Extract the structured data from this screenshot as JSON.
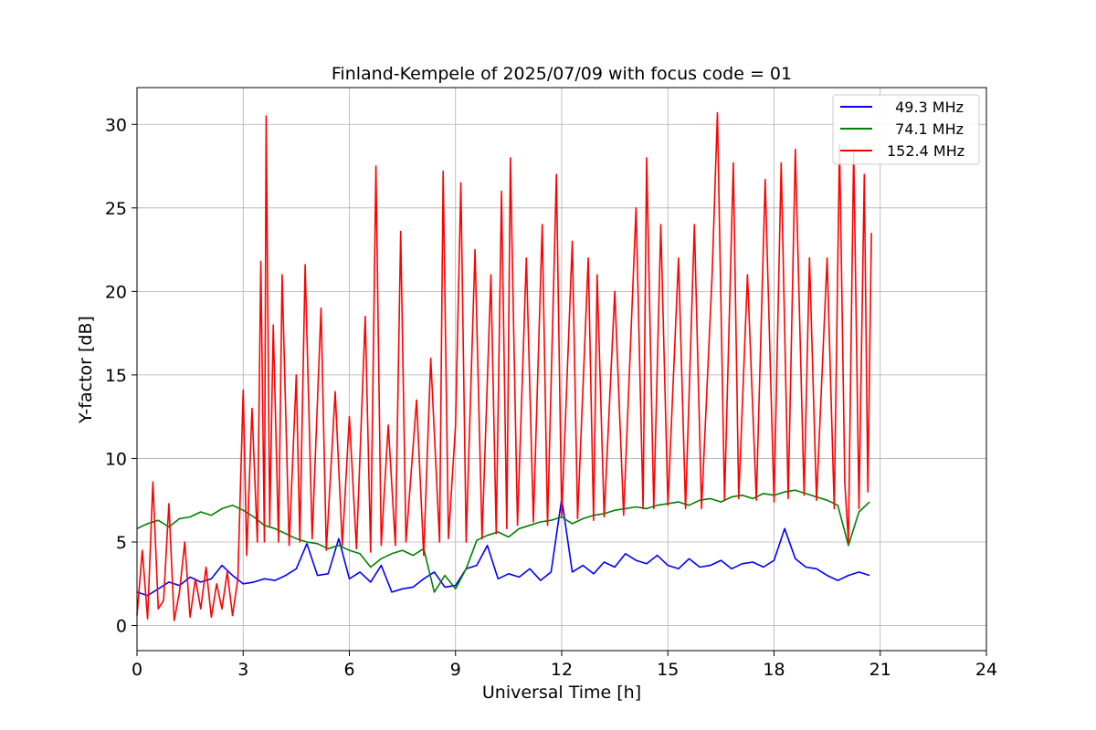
{
  "chart_data": {
    "type": "line",
    "title": "Finland-Kempele of 2025/07/09 with focus code = 01",
    "xlabel": "Universal Time [h]",
    "ylabel": "Y-factor [dB]",
    "xlim": [
      0,
      24
    ],
    "ylim": [
      -1.5,
      32.2
    ],
    "xticks": [
      0,
      3,
      6,
      9,
      12,
      15,
      18,
      21,
      24
    ],
    "yticks": [
      0,
      5,
      10,
      15,
      20,
      25,
      30
    ],
    "grid": true,
    "legend_position": "top-right",
    "series": [
      {
        "name": " 49.3 MHz",
        "color": "#0000ff",
        "points": [
          [
            0.0,
            2.0
          ],
          [
            0.3,
            1.8
          ],
          [
            0.6,
            2.2
          ],
          [
            0.9,
            2.6
          ],
          [
            1.2,
            2.4
          ],
          [
            1.5,
            2.9
          ],
          [
            1.8,
            2.6
          ],
          [
            2.1,
            2.8
          ],
          [
            2.4,
            3.6
          ],
          [
            2.7,
            3.0
          ],
          [
            3.0,
            2.5
          ],
          [
            3.3,
            2.6
          ],
          [
            3.6,
            2.8
          ],
          [
            3.9,
            2.7
          ],
          [
            4.2,
            3.0
          ],
          [
            4.5,
            3.4
          ],
          [
            4.8,
            4.9
          ],
          [
            5.1,
            3.0
          ],
          [
            5.4,
            3.1
          ],
          [
            5.7,
            5.2
          ],
          [
            6.0,
            2.8
          ],
          [
            6.3,
            3.2
          ],
          [
            6.6,
            2.6
          ],
          [
            6.9,
            3.6
          ],
          [
            7.2,
            2.0
          ],
          [
            7.5,
            2.2
          ],
          [
            7.8,
            2.3
          ],
          [
            8.1,
            2.8
          ],
          [
            8.4,
            3.2
          ],
          [
            8.7,
            2.3
          ],
          [
            9.0,
            2.4
          ],
          [
            9.3,
            3.4
          ],
          [
            9.6,
            3.6
          ],
          [
            9.9,
            4.8
          ],
          [
            10.2,
            2.8
          ],
          [
            10.5,
            3.1
          ],
          [
            10.8,
            2.9
          ],
          [
            11.1,
            3.4
          ],
          [
            11.4,
            2.7
          ],
          [
            11.7,
            3.2
          ],
          [
            12.0,
            7.6
          ],
          [
            12.3,
            3.2
          ],
          [
            12.6,
            3.6
          ],
          [
            12.9,
            3.1
          ],
          [
            13.2,
            3.8
          ],
          [
            13.5,
            3.5
          ],
          [
            13.8,
            4.3
          ],
          [
            14.1,
            3.9
          ],
          [
            14.4,
            3.7
          ],
          [
            14.7,
            4.2
          ],
          [
            15.0,
            3.6
          ],
          [
            15.3,
            3.4
          ],
          [
            15.6,
            4.0
          ],
          [
            15.9,
            3.5
          ],
          [
            16.2,
            3.6
          ],
          [
            16.5,
            3.9
          ],
          [
            16.8,
            3.4
          ],
          [
            17.1,
            3.7
          ],
          [
            17.4,
            3.8
          ],
          [
            17.7,
            3.5
          ],
          [
            18.0,
            3.9
          ],
          [
            18.3,
            5.8
          ],
          [
            18.6,
            4.0
          ],
          [
            18.9,
            3.5
          ],
          [
            19.2,
            3.4
          ],
          [
            19.5,
            3.0
          ],
          [
            19.8,
            2.7
          ],
          [
            20.1,
            3.0
          ],
          [
            20.4,
            3.2
          ],
          [
            20.7,
            3.0
          ]
        ]
      },
      {
        "name": " 74.1 MHz",
        "color": "#008000",
        "points": [
          [
            0.0,
            5.8
          ],
          [
            0.3,
            6.1
          ],
          [
            0.6,
            6.3
          ],
          [
            0.9,
            5.9
          ],
          [
            1.2,
            6.4
          ],
          [
            1.5,
            6.5
          ],
          [
            1.8,
            6.8
          ],
          [
            2.1,
            6.6
          ],
          [
            2.4,
            7.0
          ],
          [
            2.7,
            7.2
          ],
          [
            3.0,
            6.9
          ],
          [
            3.3,
            6.5
          ],
          [
            3.6,
            6.0
          ],
          [
            3.9,
            5.8
          ],
          [
            4.2,
            5.5
          ],
          [
            4.5,
            5.2
          ],
          [
            4.8,
            5.0
          ],
          [
            5.1,
            4.9
          ],
          [
            5.4,
            4.6
          ],
          [
            5.7,
            4.8
          ],
          [
            6.0,
            4.5
          ],
          [
            6.3,
            4.3
          ],
          [
            6.6,
            3.5
          ],
          [
            6.9,
            4.0
          ],
          [
            7.2,
            4.3
          ],
          [
            7.5,
            4.5
          ],
          [
            7.8,
            4.2
          ],
          [
            8.1,
            4.6
          ],
          [
            8.4,
            2.0
          ],
          [
            8.7,
            3.0
          ],
          [
            9.0,
            2.2
          ],
          [
            9.3,
            3.4
          ],
          [
            9.6,
            5.1
          ],
          [
            9.9,
            5.4
          ],
          [
            10.2,
            5.6
          ],
          [
            10.5,
            5.3
          ],
          [
            10.8,
            5.8
          ],
          [
            11.1,
            6.0
          ],
          [
            11.4,
            6.2
          ],
          [
            11.7,
            6.3
          ],
          [
            12.0,
            6.5
          ],
          [
            12.3,
            6.1
          ],
          [
            12.6,
            6.4
          ],
          [
            12.9,
            6.6
          ],
          [
            13.2,
            6.7
          ],
          [
            13.5,
            6.9
          ],
          [
            13.8,
            7.0
          ],
          [
            14.1,
            7.1
          ],
          [
            14.4,
            7.0
          ],
          [
            14.7,
            7.2
          ],
          [
            15.0,
            7.3
          ],
          [
            15.3,
            7.4
          ],
          [
            15.6,
            7.2
          ],
          [
            15.9,
            7.5
          ],
          [
            16.2,
            7.6
          ],
          [
            16.5,
            7.4
          ],
          [
            16.8,
            7.7
          ],
          [
            17.1,
            7.8
          ],
          [
            17.4,
            7.6
          ],
          [
            17.7,
            7.9
          ],
          [
            18.0,
            7.8
          ],
          [
            18.3,
            8.0
          ],
          [
            18.6,
            8.1
          ],
          [
            18.9,
            7.9
          ],
          [
            19.2,
            7.7
          ],
          [
            19.5,
            7.5
          ],
          [
            19.8,
            7.2
          ],
          [
            20.1,
            4.8
          ],
          [
            20.4,
            6.8
          ],
          [
            20.7,
            7.4
          ]
        ]
      },
      {
        "name": "152.4 MHz",
        "color": "#ff0000",
        "points": [
          [
            0.0,
            0.6
          ],
          [
            0.15,
            4.5
          ],
          [
            0.3,
            0.4
          ],
          [
            0.45,
            8.6
          ],
          [
            0.6,
            1.0
          ],
          [
            0.75,
            1.5
          ],
          [
            0.9,
            7.3
          ],
          [
            1.05,
            0.3
          ],
          [
            1.2,
            2.0
          ],
          [
            1.35,
            5.0
          ],
          [
            1.5,
            0.5
          ],
          [
            1.65,
            2.8
          ],
          [
            1.8,
            1.0
          ],
          [
            1.95,
            3.5
          ],
          [
            2.1,
            0.5
          ],
          [
            2.25,
            2.5
          ],
          [
            2.4,
            1.0
          ],
          [
            2.55,
            3.2
          ],
          [
            2.7,
            0.6
          ],
          [
            2.85,
            2.8
          ],
          [
            3.0,
            14.1
          ],
          [
            3.1,
            4.2
          ],
          [
            3.25,
            13.0
          ],
          [
            3.4,
            5.0
          ],
          [
            3.5,
            21.8
          ],
          [
            3.6,
            5.0
          ],
          [
            3.65,
            30.5
          ],
          [
            3.75,
            6.0
          ],
          [
            3.85,
            18.0
          ],
          [
            4.0,
            5.0
          ],
          [
            4.1,
            21.0
          ],
          [
            4.3,
            4.8
          ],
          [
            4.5,
            15.0
          ],
          [
            4.6,
            5.0
          ],
          [
            4.75,
            21.6
          ],
          [
            4.95,
            5.2
          ],
          [
            5.2,
            19.0
          ],
          [
            5.35,
            4.5
          ],
          [
            5.6,
            14.0
          ],
          [
            5.8,
            4.8
          ],
          [
            6.0,
            12.5
          ],
          [
            6.2,
            4.6
          ],
          [
            6.45,
            18.5
          ],
          [
            6.6,
            4.4
          ],
          [
            6.75,
            27.5
          ],
          [
            6.9,
            4.8
          ],
          [
            7.1,
            12.0
          ],
          [
            7.3,
            4.8
          ],
          [
            7.45,
            23.6
          ],
          [
            7.6,
            5.0
          ],
          [
            7.9,
            13.5
          ],
          [
            8.1,
            4.2
          ],
          [
            8.3,
            16.0
          ],
          [
            8.55,
            5.0
          ],
          [
            8.65,
            27.2
          ],
          [
            8.8,
            5.2
          ],
          [
            9.0,
            12.0
          ],
          [
            9.15,
            26.5
          ],
          [
            9.3,
            5.0
          ],
          [
            9.55,
            22.5
          ],
          [
            9.75,
            5.2
          ],
          [
            10.0,
            21.0
          ],
          [
            10.15,
            5.5
          ],
          [
            10.3,
            26.0
          ],
          [
            10.45,
            5.8
          ],
          [
            10.55,
            28.0
          ],
          [
            10.75,
            6.0
          ],
          [
            11.0,
            22.0
          ],
          [
            11.2,
            6.2
          ],
          [
            11.45,
            24.0
          ],
          [
            11.6,
            6.0
          ],
          [
            11.85,
            27.0
          ],
          [
            12.0,
            6.5
          ],
          [
            12.3,
            23.0
          ],
          [
            12.45,
            6.4
          ],
          [
            12.75,
            22.0
          ],
          [
            12.9,
            6.3
          ],
          [
            13.0,
            21.0
          ],
          [
            13.2,
            6.5
          ],
          [
            13.5,
            20.0
          ],
          [
            13.75,
            6.6
          ],
          [
            14.1,
            25.0
          ],
          [
            14.3,
            7.0
          ],
          [
            14.4,
            28.0
          ],
          [
            14.6,
            7.0
          ],
          [
            14.8,
            24.0
          ],
          [
            15.0,
            7.2
          ],
          [
            15.3,
            22.0
          ],
          [
            15.5,
            7.0
          ],
          [
            15.75,
            24.0
          ],
          [
            15.95,
            7.0
          ],
          [
            16.25,
            21.0
          ],
          [
            16.4,
            30.7
          ],
          [
            16.6,
            7.5
          ],
          [
            16.85,
            27.7
          ],
          [
            17.0,
            7.6
          ],
          [
            17.25,
            21.0
          ],
          [
            17.5,
            7.5
          ],
          [
            17.75,
            26.7
          ],
          [
            18.0,
            7.4
          ],
          [
            18.2,
            27.7
          ],
          [
            18.4,
            7.6
          ],
          [
            18.6,
            28.5
          ],
          [
            18.85,
            7.8
          ],
          [
            19.0,
            22.0
          ],
          [
            19.2,
            7.5
          ],
          [
            19.5,
            22.0
          ],
          [
            19.7,
            7.0
          ],
          [
            19.85,
            28.8
          ],
          [
            20.0,
            8.5
          ],
          [
            20.1,
            5.0
          ],
          [
            20.25,
            28.5
          ],
          [
            20.4,
            7.0
          ],
          [
            20.55,
            27.0
          ],
          [
            20.65,
            8.0
          ],
          [
            20.75,
            23.5
          ]
        ]
      }
    ]
  }
}
